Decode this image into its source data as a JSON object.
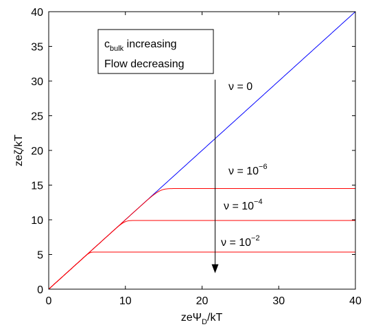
{
  "chart_data": {
    "type": "line",
    "xlabel": {
      "main": "zeΨ",
      "sub": "D",
      "tail": "/kT"
    },
    "ylabel": "zeζ/kT",
    "xlim": [
      0,
      40
    ],
    "ylim": [
      0,
      40
    ],
    "xticks": [
      0,
      10,
      20,
      30,
      40
    ],
    "yticks": [
      0,
      5,
      10,
      15,
      20,
      25,
      30,
      35,
      40
    ],
    "grid": false,
    "series": [
      {
        "label": "ν = 0",
        "color": "#0000ff",
        "plateau": null
      },
      {
        "label": {
          "base": "ν = 10",
          "sup": "−6"
        },
        "color": "#ff0000",
        "plateau": 14.5
      },
      {
        "label": {
          "base": "ν = 10",
          "sup": "−4"
        },
        "color": "#ff0000",
        "plateau": 9.9
      },
      {
        "label": {
          "base": "ν = 10",
          "sup": "−2"
        },
        "color": "#ff0000",
        "plateau": 5.35
      }
    ],
    "annotation": {
      "line1": {
        "main": "c",
        "sub": "bulk",
        "tail": " increasing"
      },
      "line2": "Flow decreasing",
      "arrow_from": [
        21.7,
        30
      ],
      "arrow_to": [
        21.7,
        2.3
      ]
    }
  }
}
